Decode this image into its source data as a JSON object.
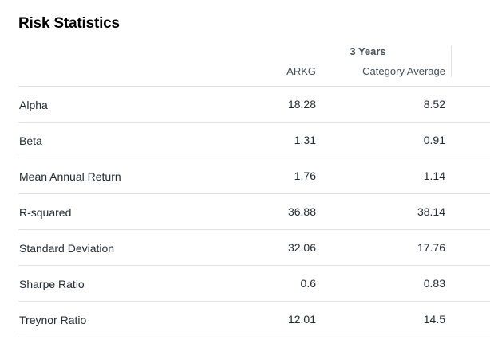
{
  "title": "Risk Statistics",
  "period": "3 Years",
  "columns": {
    "ticker": "ARKG",
    "category": "Category Average"
  },
  "rows": [
    {
      "label": "Alpha",
      "ticker": "18.28",
      "category": "8.52"
    },
    {
      "label": "Beta",
      "ticker": "1.31",
      "category": "0.91"
    },
    {
      "label": "Mean Annual Return",
      "ticker": "1.76",
      "category": "1.14"
    },
    {
      "label": "R-squared",
      "ticker": "36.88",
      "category": "38.14"
    },
    {
      "label": "Standard Deviation",
      "ticker": "32.06",
      "category": "17.76"
    },
    {
      "label": "Sharpe Ratio",
      "ticker": "0.6",
      "category": "0.83"
    },
    {
      "label": "Treynor Ratio",
      "ticker": "12.01",
      "category": "14.5"
    }
  ],
  "colors": {
    "text": "#232a31",
    "header_text": "#464e56",
    "divider": "#e0e4e9"
  }
}
